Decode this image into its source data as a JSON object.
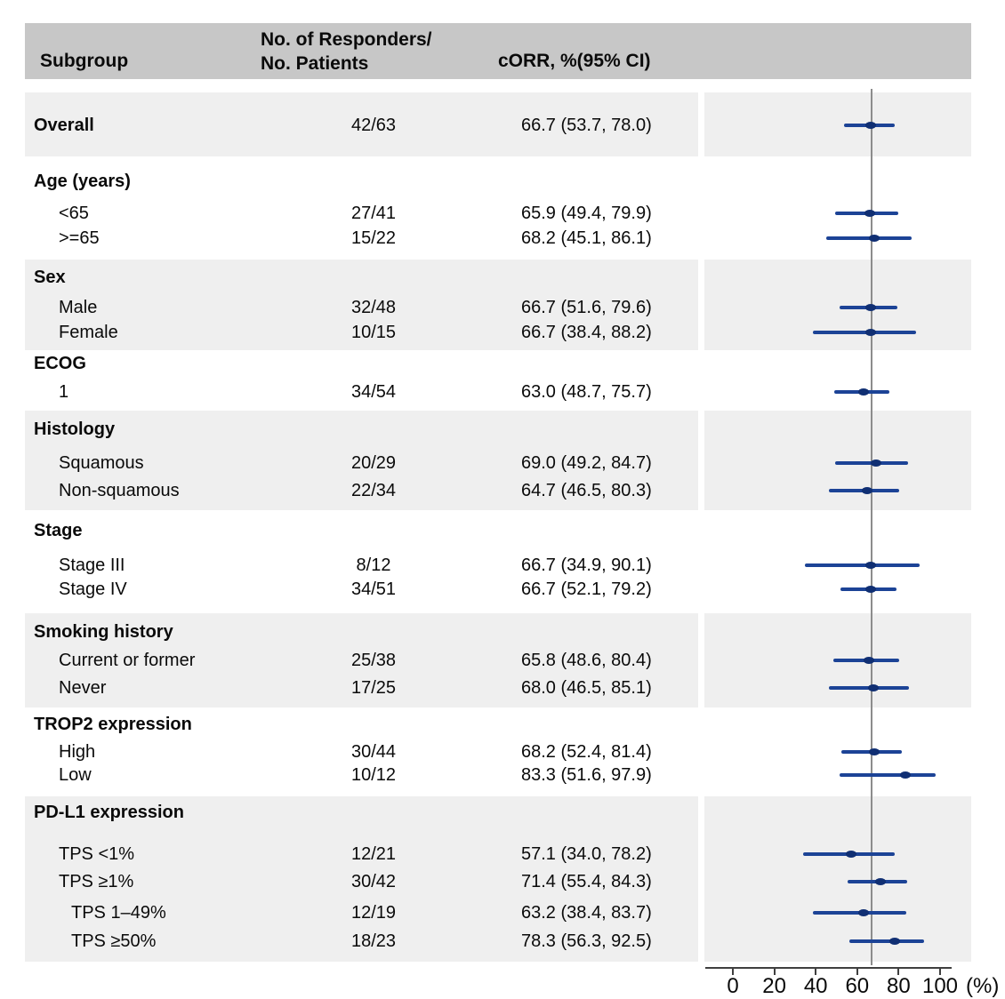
{
  "chart_data": {
    "type": "forest",
    "title": "",
    "columns": {
      "subgroup": "Subgroup",
      "responders_line1": "No. of Responders/",
      "responders_line2": "No. Patients",
      "corr": "cORR, %(95% CI)"
    },
    "x_ticks": [
      0,
      20,
      40,
      60,
      80,
      100
    ],
    "x_unit": "(%)",
    "xlim": [
      0,
      100
    ],
    "reference_line_value": 66.7,
    "legend": "none",
    "grid": false,
    "colors": {
      "ci_bar": "#1c4396",
      "marker": "#102f73",
      "reference_line": "#8c8c8c",
      "header_band": "#c7c7c7",
      "row_band": "#efefef",
      "axis": "#3f3f3f"
    },
    "sections": [
      {
        "header": null,
        "shaded": true,
        "rows": [
          {
            "label": "Overall",
            "bold": true,
            "indent": 0,
            "n": "42/63",
            "corr": "66.7 (53.7, 78.0)",
            "est": 66.7,
            "lo": 53.7,
            "hi": 78.0
          }
        ]
      },
      {
        "header": "Age (years)",
        "shaded": false,
        "rows": [
          {
            "label": "<65",
            "bold": false,
            "indent": 1,
            "n": "27/41",
            "corr": "65.9 (49.4, 79.9)",
            "est": 65.9,
            "lo": 49.4,
            "hi": 79.9
          },
          {
            "label": ">=65",
            "bold": false,
            "indent": 1,
            "n": "15/22",
            "corr": "68.2 (45.1, 86.1)",
            "est": 68.2,
            "lo": 45.1,
            "hi": 86.1
          }
        ]
      },
      {
        "header": "Sex",
        "shaded": true,
        "rows": [
          {
            "label": "Male",
            "bold": false,
            "indent": 1,
            "n": "32/48",
            "corr": "66.7 (51.6, 79.6)",
            "est": 66.7,
            "lo": 51.6,
            "hi": 79.6
          },
          {
            "label": "Female",
            "bold": false,
            "indent": 1,
            "n": "10/15",
            "corr": "66.7 (38.4, 88.2)",
            "est": 66.7,
            "lo": 38.4,
            "hi": 88.2
          }
        ]
      },
      {
        "header": "ECOG",
        "shaded": false,
        "rows": [
          {
            "label": "1",
            "bold": false,
            "indent": 1,
            "n": "34/54",
            "corr": "63.0 (48.7, 75.7)",
            "est": 63.0,
            "lo": 48.7,
            "hi": 75.7
          }
        ]
      },
      {
        "header": "Histology",
        "shaded": true,
        "rows": [
          {
            "label": "Squamous",
            "bold": false,
            "indent": 1,
            "n": "20/29",
            "corr": "69.0 (49.2, 84.7)",
            "est": 69.0,
            "lo": 49.2,
            "hi": 84.7
          },
          {
            "label": "Non-squamous",
            "bold": false,
            "indent": 1,
            "n": "22/34",
            "corr": "64.7 (46.5, 80.3)",
            "est": 64.7,
            "lo": 46.5,
            "hi": 80.3
          }
        ]
      },
      {
        "header": "Stage",
        "shaded": false,
        "rows": [
          {
            "label": "Stage III",
            "bold": false,
            "indent": 1,
            "n": "8/12",
            "corr": "66.7 (34.9, 90.1)",
            "est": 66.7,
            "lo": 34.9,
            "hi": 90.1
          },
          {
            "label": "Stage IV",
            "bold": false,
            "indent": 1,
            "n": "34/51",
            "corr": "66.7 (52.1, 79.2)",
            "est": 66.7,
            "lo": 52.1,
            "hi": 79.2
          }
        ]
      },
      {
        "header": "Smoking history",
        "shaded": true,
        "rows": [
          {
            "label": "Current or former",
            "bold": false,
            "indent": 1,
            "n": "25/38",
            "corr": "65.8 (48.6, 80.4)",
            "est": 65.8,
            "lo": 48.6,
            "hi": 80.4
          },
          {
            "label": "Never",
            "bold": false,
            "indent": 1,
            "n": "17/25",
            "corr": "68.0 (46.5, 85.1)",
            "est": 68.0,
            "lo": 46.5,
            "hi": 85.1
          }
        ]
      },
      {
        "header": "TROP2 expression",
        "shaded": false,
        "rows": [
          {
            "label": "High",
            "bold": false,
            "indent": 1,
            "n": "30/44",
            "corr": "68.2 (52.4, 81.4)",
            "est": 68.2,
            "lo": 52.4,
            "hi": 81.4
          },
          {
            "label": "Low",
            "bold": false,
            "indent": 1,
            "n": "10/12",
            "corr": "83.3 (51.6, 97.9)",
            "est": 83.3,
            "lo": 51.6,
            "hi": 97.9
          }
        ]
      },
      {
        "header": "PD-L1 expression",
        "shaded": true,
        "rows": [
          {
            "label": "TPS <1%",
            "bold": false,
            "indent": 1,
            "n": "12/21",
            "corr": "57.1 (34.0, 78.2)",
            "est": 57.1,
            "lo": 34.0,
            "hi": 78.2
          },
          {
            "label": "TPS ≥1%",
            "bold": false,
            "indent": 1,
            "n": "30/42",
            "corr": "71.4 (55.4, 84.3)",
            "est": 71.4,
            "lo": 55.4,
            "hi": 84.3
          },
          {
            "label": "TPS 1–49%",
            "bold": false,
            "indent": 2,
            "n": "12/19",
            "corr": "63.2 (38.4, 83.7)",
            "est": 63.2,
            "lo": 38.4,
            "hi": 83.7
          },
          {
            "label": "TPS ≥50%",
            "bold": false,
            "indent": 2,
            "n": "18/23",
            "corr": "78.3 (56.3, 92.5)",
            "est": 78.3,
            "lo": 56.3,
            "hi": 92.5
          }
        ]
      }
    ]
  }
}
